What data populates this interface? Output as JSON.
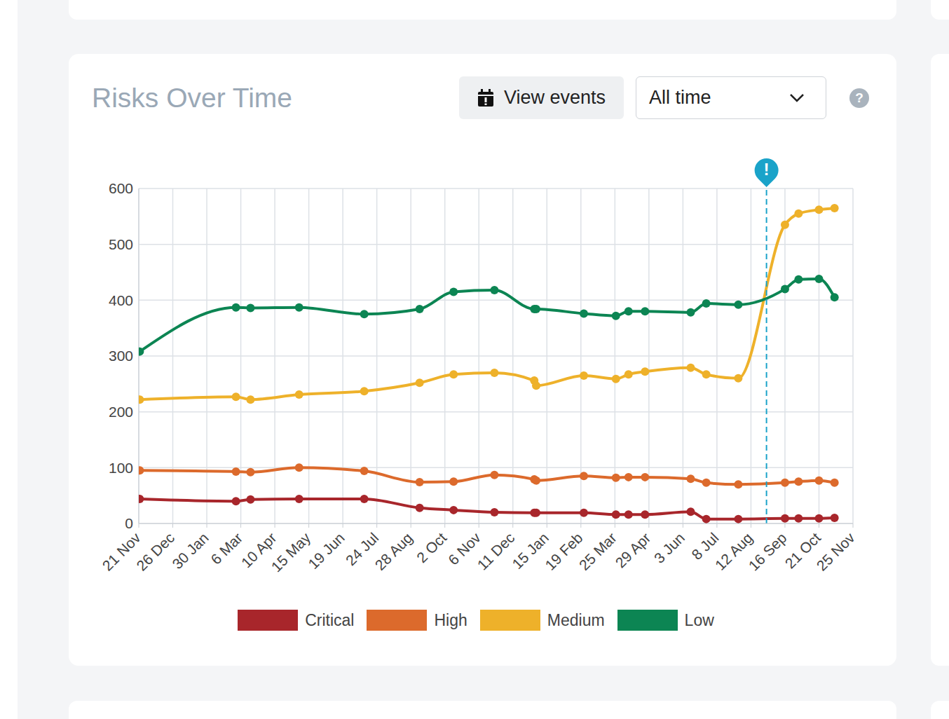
{
  "chart_data": {
    "type": "line",
    "title": "Risks Over Time",
    "x": [
      1,
      100,
      115,
      165,
      232,
      289,
      324,
      366,
      407,
      409,
      458,
      491,
      504,
      521,
      568,
      584,
      617,
      665,
      679,
      700,
      716
    ],
    "xlim": [
      0,
      735
    ],
    "xticks": [
      {
        "value": 0,
        "label": "21 Nov"
      },
      {
        "value": 35,
        "label": "26 Dec"
      },
      {
        "value": 70,
        "label": "30 Jan"
      },
      {
        "value": 105,
        "label": "6 Mar"
      },
      {
        "value": 140,
        "label": "10 Apr"
      },
      {
        "value": 175,
        "label": "15 May"
      },
      {
        "value": 210,
        "label": "19 Jun"
      },
      {
        "value": 245,
        "label": "24 Jul"
      },
      {
        "value": 280,
        "label": "28 Aug"
      },
      {
        "value": 315,
        "label": "2 Oct"
      },
      {
        "value": 350,
        "label": "6 Nov"
      },
      {
        "value": 385,
        "label": "11 Dec"
      },
      {
        "value": 420,
        "label": "15 Jan"
      },
      {
        "value": 455,
        "label": "19 Feb"
      },
      {
        "value": 490,
        "label": "25 Mar"
      },
      {
        "value": 525,
        "label": "29 Apr"
      },
      {
        "value": 560,
        "label": "3 Jun"
      },
      {
        "value": 595,
        "label": "8 Jul"
      },
      {
        "value": 630,
        "label": "12 Aug"
      },
      {
        "value": 665,
        "label": "16 Sep"
      },
      {
        "value": 700,
        "label": "21 Oct"
      },
      {
        "value": 735,
        "label": "25 Nov"
      }
    ],
    "ylim": [
      0,
      600
    ],
    "yticks": [
      0,
      100,
      200,
      300,
      400,
      500,
      600
    ],
    "grid": true,
    "legend": "bottom",
    "marker": "circle",
    "series": [
      {
        "name": "Critical",
        "color": "#a8262b",
        "values": [
          44,
          40,
          43,
          44,
          44,
          28,
          24,
          20,
          19,
          19,
          19,
          16,
          16,
          16,
          21,
          8,
          8,
          9,
          9,
          9,
          10
        ]
      },
      {
        "name": "High",
        "color": "#dc6a2c",
        "values": [
          95,
          93,
          92,
          100,
          94,
          74,
          75,
          87,
          79,
          77,
          85,
          82,
          83,
          83,
          80,
          73,
          70,
          73,
          75,
          77,
          73
        ]
      },
      {
        "name": "Medium",
        "color": "#eeb12a",
        "values": [
          222,
          227,
          222,
          231,
          237,
          252,
          267,
          270,
          256,
          247,
          265,
          259,
          267,
          272,
          279,
          267,
          260,
          535,
          555,
          562,
          565
        ]
      },
      {
        "name": "Low",
        "color": "#0c8553",
        "values": [
          308,
          387,
          386,
          387,
          375,
          384,
          415,
          418,
          384,
          384,
          376,
          372,
          380,
          380,
          378,
          394,
          392,
          420,
          437,
          438,
          405
        ]
      }
    ],
    "annotations": [
      {
        "x": 646,
        "label": "!"
      }
    ]
  },
  "ui": {
    "button": "View events",
    "dropdown": "All time",
    "help": "?"
  }
}
